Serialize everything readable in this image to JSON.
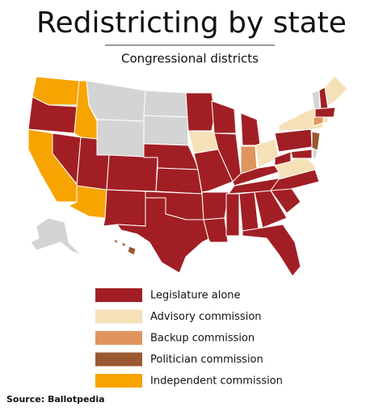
{
  "title": "Redistricting by state",
  "subtitle": "Congressional districts",
  "legend": [
    {
      "label": "Legislature alone",
      "color": "#a11f24"
    },
    {
      "label": "Advisory commission",
      "color": "#f5e0b8"
    },
    {
      "label": "Backup commission",
      "color": "#e0955e"
    },
    {
      "label": "Politician commission",
      "color": "#9a5833"
    },
    {
      "label": "Independent commission",
      "color": "#f7a400"
    }
  ],
  "source": "Source: Ballotpedia"
}
